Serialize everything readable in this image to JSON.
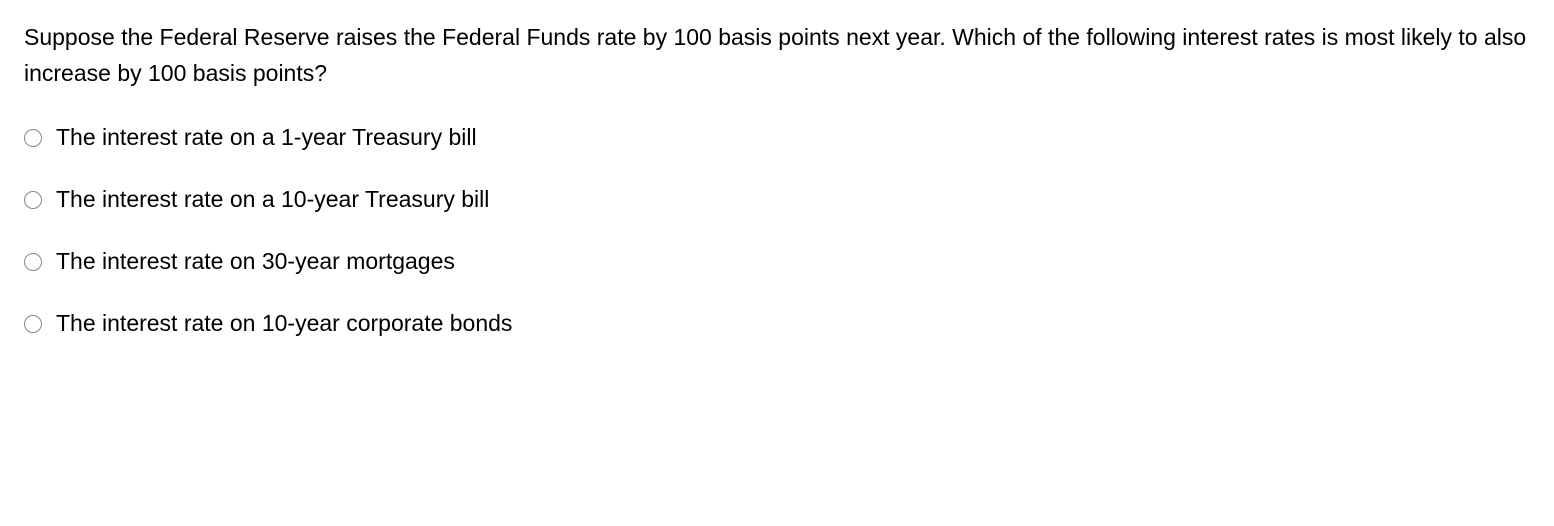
{
  "question": {
    "text": "Suppose the Federal Reserve raises the Federal Funds rate by 100 basis points next year. Which of the following interest rates is most likely to also increase by 100 basis points?",
    "text_color": "#000000",
    "font_size": 23,
    "line_height": 1.55
  },
  "options": [
    {
      "label": "The interest rate on a 1-year Treasury bill"
    },
    {
      "label": "The interest rate on a 10-year Treasury bill"
    },
    {
      "label": "The interest rate on 30-year mortgages"
    },
    {
      "label": "The interest rate on 10-year corporate bonds"
    }
  ],
  "styling": {
    "background_color": "#ffffff",
    "radio_border_color": "#888888",
    "radio_size": 18,
    "option_font_size": 23,
    "option_gap": 32,
    "radio_label_gap": 14
  }
}
